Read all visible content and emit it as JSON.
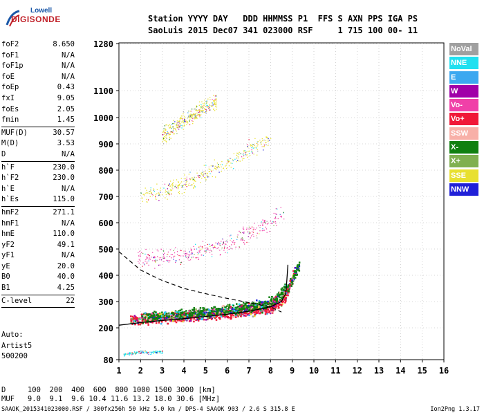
{
  "logo": {
    "line1": "Lowell",
    "line2": "DIGISONDE"
  },
  "header": {
    "line1": "Station YYYY DAY   DDD HHMMSS P1  FFS S AXN PPS IGA PS",
    "line2": "SaoLuis 2015 Dec07 341 023000 RSF     1 715 100 00- 11"
  },
  "params": {
    "group1": [
      {
        "label": "foF2",
        "value": "8.650"
      },
      {
        "label": "foF1",
        "value": "N/A"
      },
      {
        "label": "foF1p",
        "value": "N/A"
      },
      {
        "label": "foE",
        "value": "N/A"
      },
      {
        "label": "foEp",
        "value": "0.43"
      },
      {
        "label": "fxI",
        "value": "9.05"
      },
      {
        "label": "foEs",
        "value": "2.05"
      },
      {
        "label": "fmin",
        "value": "1.45"
      }
    ],
    "group2": [
      {
        "label": "MUF(D)",
        "value": "30.57"
      },
      {
        "label": "M(D)",
        "value": "3.53"
      },
      {
        "label": "D",
        "value": "N/A"
      }
    ],
    "group3": [
      {
        "label": "h`F",
        "value": "230.0"
      },
      {
        "label": "h`F2",
        "value": "230.0"
      },
      {
        "label": "h`E",
        "value": "N/A"
      },
      {
        "label": "h`Es",
        "value": "115.0"
      }
    ],
    "group4": [
      {
        "label": "hmF2",
        "value": "271.1"
      },
      {
        "label": "hmF1",
        "value": "N/A"
      },
      {
        "label": "hmE",
        "value": "110.0"
      },
      {
        "label": "yF2",
        "value": "49.1"
      },
      {
        "label": "yF1",
        "value": "N/A"
      },
      {
        "label": "yE",
        "value": "20.0"
      },
      {
        "label": "B0",
        "value": "40.0"
      },
      {
        "label": "B1",
        "value": "4.25"
      }
    ],
    "group5": [
      {
        "label": "C-level",
        "value": "22"
      }
    ]
  },
  "auto": {
    "line1": "Auto:",
    "line2": "Artist5",
    "line3": "500200"
  },
  "legend": [
    {
      "label": "NoVal",
      "color": "#a0a0a0"
    },
    {
      "label": "NNE",
      "color": "#20e0f0"
    },
    {
      "label": "E",
      "color": "#3ca8f0"
    },
    {
      "label": "W",
      "color": "#a000a8"
    },
    {
      "label": "Vo-",
      "color": "#f040a8"
    },
    {
      "label": "Vo+",
      "color": "#f01838"
    },
    {
      "label": "SSW",
      "color": "#f8b0a8"
    },
    {
      "label": "X-",
      "color": "#108010"
    },
    {
      "label": "X+",
      "color": "#80b050"
    },
    {
      "label": "SSE",
      "color": "#e8e030"
    },
    {
      "label": "NNW",
      "color": "#2020d8"
    }
  ],
  "dtable": {
    "d_row": "D     100  200  400  600  800 1000 1500 3000 [km]",
    "muf_row": "MUF   9.0  9.1  9.6 10.4 11.6 13.2 18.0 30.6 [MHz]"
  },
  "footer": "SAAOK_2015341023000.RSF / 300fx256h 50 kHz 5.0 km / DPS-4 SAAOK 903 / 2.6 S 315.8 E",
  "version": "Ion2Png 1.3.17",
  "chart_data": {
    "type": "scatter",
    "x_axis": {
      "ticks": [
        "1",
        "2",
        "3",
        "4",
        "5",
        "6",
        "7",
        "8",
        "9",
        "10",
        "11",
        "12",
        "13",
        "14",
        "15",
        "16"
      ],
      "range": [
        1,
        16
      ],
      "unit": "MHz"
    },
    "y_axis": {
      "ticks": [
        "80",
        "200",
        "300",
        "400",
        "500",
        "600",
        "700",
        "800",
        "900",
        "1000",
        "1100",
        "1280"
      ],
      "range": [
        80,
        1280
      ],
      "unit": "km"
    },
    "grid": true,
    "series": [
      {
        "mode": "F2 O-trace",
        "color": "#f01838",
        "points": [
          [
            1.5,
            230
          ],
          [
            2,
            235
          ],
          [
            3,
            240
          ],
          [
            4,
            245
          ],
          [
            5,
            250
          ],
          [
            6,
            258
          ],
          [
            7,
            265
          ],
          [
            8,
            278
          ],
          [
            8.6,
            310
          ],
          [
            8.9,
            370
          ],
          [
            9.1,
            420
          ]
        ]
      },
      {
        "mode": "F2 X-trace",
        "color": "#108010",
        "points": [
          [
            2,
            240
          ],
          [
            3,
            248
          ],
          [
            4,
            255
          ],
          [
            5,
            262
          ],
          [
            6,
            270
          ],
          [
            7,
            282
          ],
          [
            8,
            300
          ],
          [
            8.8,
            360
          ],
          [
            9.3,
            440
          ]
        ]
      },
      {
        "mode": "2nd hop",
        "color": "#f040a8",
        "points": [
          [
            1.8,
            460
          ],
          [
            2.5,
            465
          ],
          [
            3,
            470
          ],
          [
            4,
            480
          ],
          [
            5,
            500
          ],
          [
            6,
            520
          ],
          [
            7,
            560
          ],
          [
            8,
            600
          ],
          [
            8.6,
            650
          ]
        ]
      },
      {
        "mode": "3rd hop",
        "color": "#e8e030",
        "points": [
          [
            2,
            700
          ],
          [
            3,
            720
          ],
          [
            4,
            750
          ],
          [
            5,
            790
          ],
          [
            6,
            830
          ],
          [
            7,
            880
          ],
          [
            8,
            920
          ]
        ]
      },
      {
        "mode": "4th hop",
        "color": "#e8e030",
        "points": [
          [
            3,
            930
          ],
          [
            4,
            990
          ],
          [
            5,
            1040
          ],
          [
            5.5,
            1060
          ]
        ]
      },
      {
        "mode": "Es trace",
        "color": "#20e0f0",
        "points": [
          [
            1.2,
            100
          ],
          [
            1.6,
            105
          ],
          [
            2,
            110
          ],
          [
            2.5,
            108
          ],
          [
            3,
            110
          ]
        ]
      }
    ],
    "profile_curve": [
      [
        1,
        210
      ],
      [
        2,
        220
      ],
      [
        3,
        228
      ],
      [
        4,
        235
      ],
      [
        5,
        243
      ],
      [
        6,
        252
      ],
      [
        7,
        263
      ],
      [
        8,
        280
      ],
      [
        8.5,
        300
      ],
      [
        8.7,
        330
      ],
      [
        8.75,
        380
      ],
      [
        8.8,
        440
      ]
    ],
    "dashed_curve": [
      [
        1,
        490
      ],
      [
        2,
        420
      ],
      [
        3,
        380
      ],
      [
        4,
        350
      ],
      [
        5,
        330
      ],
      [
        6,
        312
      ],
      [
        7,
        296
      ],
      [
        8,
        280
      ],
      [
        8.5,
        260
      ]
    ]
  }
}
